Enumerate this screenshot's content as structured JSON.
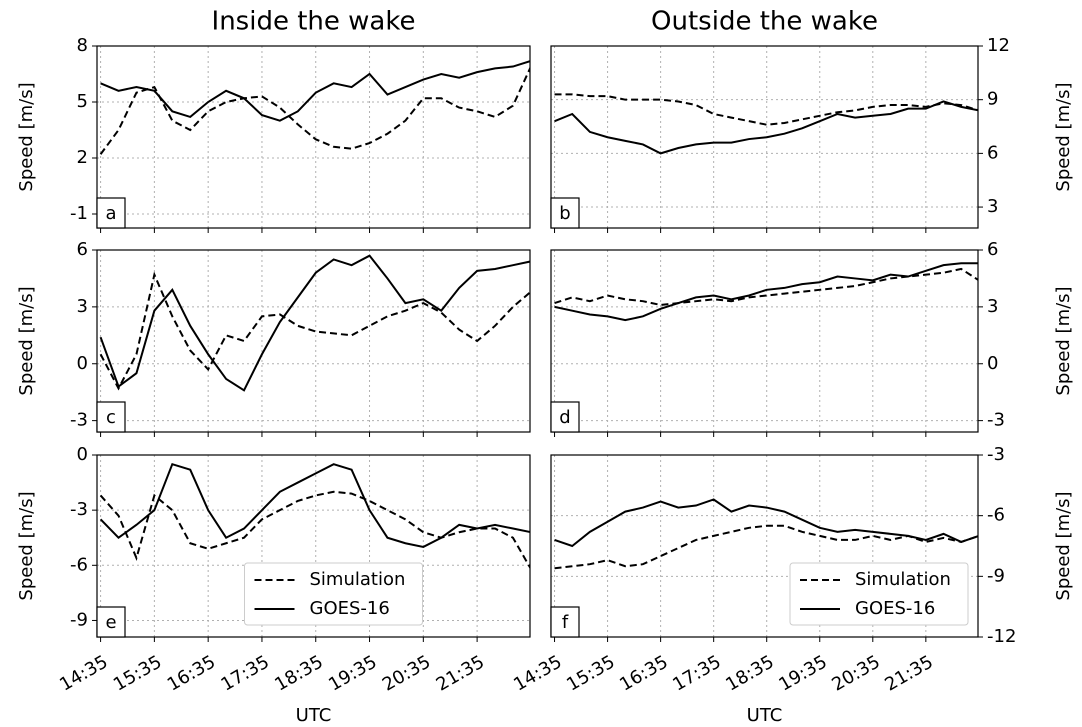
{
  "chart_data": [
    {
      "type": "line",
      "title": "Inside the wake",
      "label": "a",
      "ylabel": "Speed [m/s]",
      "yaxis": "left",
      "grid": true,
      "x": [
        "14:35",
        "14:55",
        "15:15",
        "15:35",
        "15:55",
        "16:15",
        "16:35",
        "16:55",
        "17:15",
        "17:35",
        "17:55",
        "18:15",
        "18:35",
        "18:55",
        "19:15",
        "19:35",
        "19:55",
        "20:15",
        "20:35",
        "20:55",
        "21:15",
        "21:35",
        "21:55",
        "22:15",
        "22:35"
      ],
      "xlim": [
        "14:31",
        "22:34"
      ],
      "xticks": [
        "14:35",
        "15:35",
        "16:35",
        "17:35",
        "18:35",
        "19:35",
        "20:35",
        "21:35"
      ],
      "ylim": [
        -1.75,
        8
      ],
      "yticks": [
        -1,
        2,
        5,
        8
      ],
      "series": [
        {
          "name": "Simulation",
          "color": "#000000",
          "linestyle": "dashed",
          "values": [
            2.2,
            3.5,
            5.5,
            5.8,
            4.0,
            3.5,
            4.5,
            5.0,
            5.2,
            5.3,
            4.7,
            3.8,
            3.0,
            2.6,
            2.5,
            2.8,
            3.3,
            4.0,
            5.2,
            5.2,
            4.7,
            4.5,
            4.2,
            4.8,
            6.9
          ]
        },
        {
          "name": "GOES-16",
          "color": "#000000",
          "linestyle": "solid",
          "values": [
            6.0,
            5.6,
            5.8,
            5.6,
            4.5,
            4.2,
            5.0,
            5.6,
            5.2,
            4.3,
            4.0,
            4.5,
            5.5,
            6.0,
            5.8,
            6.5,
            5.4,
            5.8,
            6.2,
            6.5,
            6.3,
            6.6,
            6.8,
            6.9,
            7.2
          ]
        }
      ]
    },
    {
      "type": "line",
      "title": "Outside the wake",
      "label": "b",
      "ylabel": "Speed [m/s]",
      "yaxis": "right",
      "grid": true,
      "x": [
        "14:35",
        "14:55",
        "15:15",
        "15:35",
        "15:55",
        "16:15",
        "16:35",
        "16:55",
        "17:15",
        "17:35",
        "17:55",
        "18:15",
        "18:35",
        "18:55",
        "19:15",
        "19:35",
        "19:55",
        "20:15",
        "20:35",
        "20:55",
        "21:15",
        "21:35",
        "21:55",
        "22:15",
        "22:35"
      ],
      "xlim": [
        "14:31",
        "22:34"
      ],
      "xticks": [
        "14:35",
        "15:35",
        "16:35",
        "17:35",
        "18:35",
        "19:35",
        "20:35",
        "21:35"
      ],
      "ylim": [
        1.83,
        12
      ],
      "yticks": [
        3,
        6,
        9,
        12
      ],
      "series": [
        {
          "name": "Simulation",
          "color": "#000000",
          "linestyle": "dashed",
          "values": [
            9.3,
            9.3,
            9.2,
            9.2,
            9.0,
            9.0,
            9.0,
            8.9,
            8.7,
            8.2,
            8.0,
            7.8,
            7.6,
            7.7,
            7.9,
            8.1,
            8.3,
            8.4,
            8.6,
            8.7,
            8.7,
            8.6,
            8.8,
            8.7,
            8.4
          ]
        },
        {
          "name": "GOES-16",
          "color": "#000000",
          "linestyle": "solid",
          "values": [
            7.8,
            8.2,
            7.2,
            6.9,
            6.7,
            6.5,
            6.0,
            6.3,
            6.5,
            6.6,
            6.6,
            6.8,
            6.9,
            7.1,
            7.4,
            7.8,
            8.2,
            8.0,
            8.1,
            8.2,
            8.5,
            8.5,
            8.9,
            8.6,
            8.4
          ]
        }
      ]
    },
    {
      "type": "line",
      "label": "c",
      "ylabel": "Speed [m/s]",
      "yaxis": "left",
      "grid": true,
      "x": [
        "14:35",
        "14:55",
        "15:15",
        "15:35",
        "15:55",
        "16:15",
        "16:35",
        "16:55",
        "17:15",
        "17:35",
        "17:55",
        "18:15",
        "18:35",
        "18:55",
        "19:15",
        "19:35",
        "19:55",
        "20:15",
        "20:35",
        "20:55",
        "21:15",
        "21:35",
        "21:55",
        "22:15",
        "22:35"
      ],
      "xlim": [
        "14:31",
        "22:34"
      ],
      "xticks": [
        "14:35",
        "15:35",
        "16:35",
        "17:35",
        "18:35",
        "19:35",
        "20:35",
        "21:35"
      ],
      "ylim": [
        -3.6,
        6
      ],
      "yticks": [
        -3,
        0,
        3,
        6
      ],
      "series": [
        {
          "name": "Simulation",
          "color": "#000000",
          "linestyle": "dashed",
          "values": [
            0.5,
            -1.3,
            0.5,
            4.7,
            2.5,
            0.7,
            -0.3,
            1.5,
            1.2,
            2.5,
            2.6,
            2.0,
            1.7,
            1.6,
            1.5,
            2.0,
            2.5,
            2.8,
            3.2,
            2.7,
            1.8,
            1.2,
            2.0,
            3.0,
            3.8
          ]
        },
        {
          "name": "GOES-16",
          "color": "#000000",
          "linestyle": "solid",
          "values": [
            1.4,
            -1.2,
            -0.5,
            2.8,
            3.9,
            2.0,
            0.5,
            -0.8,
            -1.4,
            0.5,
            2.2,
            3.5,
            4.8,
            5.5,
            5.2,
            5.7,
            4.5,
            3.2,
            3.4,
            2.8,
            4.0,
            4.9,
            5.0,
            5.2,
            5.4
          ]
        }
      ]
    },
    {
      "type": "line",
      "label": "d",
      "ylabel": "Speed [m/s]",
      "yaxis": "right",
      "grid": true,
      "x": [
        "14:35",
        "14:55",
        "15:15",
        "15:35",
        "15:55",
        "16:15",
        "16:35",
        "16:55",
        "17:15",
        "17:35",
        "17:55",
        "18:15",
        "18:35",
        "18:55",
        "19:15",
        "19:35",
        "19:55",
        "20:15",
        "20:35",
        "20:55",
        "21:15",
        "21:35",
        "21:55",
        "22:15",
        "22:35"
      ],
      "xlim": [
        "14:31",
        "22:34"
      ],
      "xticks": [
        "14:35",
        "15:35",
        "16:35",
        "17:35",
        "18:35",
        "19:35",
        "20:35",
        "21:35"
      ],
      "ylim": [
        -3.6,
        6
      ],
      "yticks": [
        -3,
        0,
        3,
        6
      ],
      "series": [
        {
          "name": "Simulation",
          "color": "#000000",
          "linestyle": "dashed",
          "values": [
            3.2,
            3.5,
            3.3,
            3.6,
            3.4,
            3.3,
            3.1,
            3.2,
            3.3,
            3.4,
            3.3,
            3.5,
            3.6,
            3.7,
            3.8,
            3.9,
            4.0,
            4.1,
            4.3,
            4.5,
            4.6,
            4.7,
            4.8,
            5.0,
            4.4
          ]
        },
        {
          "name": "GOES-16",
          "color": "#000000",
          "linestyle": "solid",
          "values": [
            3.0,
            2.8,
            2.6,
            2.5,
            2.3,
            2.5,
            2.9,
            3.2,
            3.5,
            3.6,
            3.4,
            3.6,
            3.9,
            4.0,
            4.2,
            4.3,
            4.6,
            4.5,
            4.4,
            4.7,
            4.6,
            4.9,
            5.2,
            5.3,
            5.3
          ]
        }
      ]
    },
    {
      "type": "line",
      "label": "e",
      "ylabel": "Speed [m/s]",
      "xlabel": "UTC",
      "yaxis": "left",
      "grid": true,
      "legend": "lower center",
      "x": [
        "14:35",
        "14:55",
        "15:15",
        "15:35",
        "15:55",
        "16:15",
        "16:35",
        "16:55",
        "17:15",
        "17:35",
        "17:55",
        "18:15",
        "18:35",
        "18:55",
        "19:15",
        "19:35",
        "19:55",
        "20:15",
        "20:35",
        "20:55",
        "21:15",
        "21:35",
        "21:55",
        "22:15",
        "22:35"
      ],
      "xlim": [
        "14:31",
        "22:34"
      ],
      "xticks": [
        "14:35",
        "15:35",
        "16:35",
        "17:35",
        "18:35",
        "19:35",
        "20:35",
        "21:35"
      ],
      "ylim": [
        -9.9,
        0
      ],
      "yticks": [
        -9,
        -6,
        -3,
        0
      ],
      "series": [
        {
          "name": "Simulation",
          "color": "#000000",
          "linestyle": "dashed",
          "values": [
            -2.2,
            -3.3,
            -5.6,
            -2.2,
            -3.0,
            -4.8,
            -5.1,
            -4.8,
            -4.5,
            -3.5,
            -3.0,
            -2.5,
            -2.2,
            -2.0,
            -2.1,
            -2.5,
            -3.0,
            -3.5,
            -4.2,
            -4.5,
            -4.2,
            -4.0,
            -4.0,
            -4.5,
            -6.2
          ]
        },
        {
          "name": "GOES-16",
          "color": "#000000",
          "linestyle": "solid",
          "values": [
            -3.5,
            -4.5,
            -3.8,
            -3.0,
            -0.5,
            -0.8,
            -3.0,
            -4.5,
            -4.0,
            -3.0,
            -2.0,
            -1.5,
            -1.0,
            -0.5,
            -0.8,
            -3.0,
            -4.5,
            -4.8,
            -5.0,
            -4.5,
            -3.8,
            -4.0,
            -3.8,
            -4.0,
            -4.2
          ]
        }
      ]
    },
    {
      "type": "line",
      "label": "f",
      "ylabel": "Speed [m/s]",
      "xlabel": "UTC",
      "yaxis": "right",
      "grid": true,
      "legend": "lower right",
      "x": [
        "14:35",
        "14:55",
        "15:15",
        "15:35",
        "15:55",
        "16:15",
        "16:35",
        "16:55",
        "17:15",
        "17:35",
        "17:55",
        "18:15",
        "18:35",
        "18:55",
        "19:15",
        "19:35",
        "19:55",
        "20:15",
        "20:35",
        "20:55",
        "21:15",
        "21:35",
        "21:55",
        "22:15",
        "22:35"
      ],
      "xlim": [
        "14:31",
        "22:34"
      ],
      "xticks": [
        "14:35",
        "15:35",
        "16:35",
        "17:35",
        "18:35",
        "19:35",
        "20:35",
        "21:35"
      ],
      "ylim": [
        -12,
        -3
      ],
      "yticks": [
        -12,
        -9,
        -6,
        -3
      ],
      "series": [
        {
          "name": "Simulation",
          "color": "#000000",
          "linestyle": "dashed",
          "values": [
            -8.6,
            -8.5,
            -8.4,
            -8.2,
            -8.5,
            -8.4,
            -8.0,
            -7.6,
            -7.2,
            -7.0,
            -6.8,
            -6.6,
            -6.5,
            -6.5,
            -6.8,
            -7.0,
            -7.2,
            -7.2,
            -7.0,
            -7.2,
            -7.0,
            -7.3,
            -7.1,
            -7.3,
            -7.0
          ]
        },
        {
          "name": "GOES-16",
          "color": "#000000",
          "linestyle": "solid",
          "values": [
            -7.2,
            -7.5,
            -6.8,
            -6.3,
            -5.8,
            -5.6,
            -5.3,
            -5.6,
            -5.5,
            -5.2,
            -5.8,
            -5.5,
            -5.6,
            -5.8,
            -6.2,
            -6.6,
            -6.8,
            -6.7,
            -6.8,
            -6.9,
            -7.0,
            -7.2,
            -6.9,
            -7.3,
            -7.0
          ]
        }
      ]
    }
  ]
}
